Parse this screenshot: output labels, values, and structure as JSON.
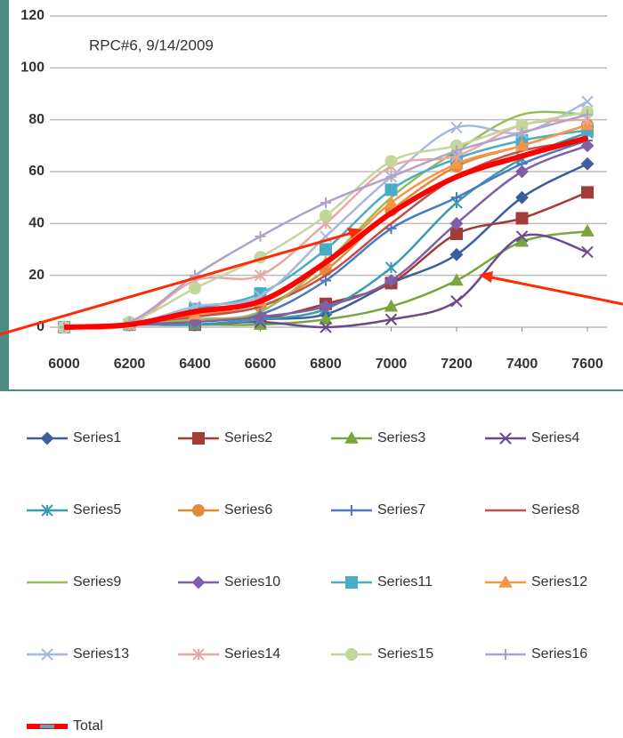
{
  "chart_data": {
    "type": "line",
    "annotation": "RPC#6, 9/14/2009",
    "x": [
      6000,
      6200,
      6400,
      6600,
      6800,
      7000,
      7200,
      7400,
      7600
    ],
    "xlim": [
      6000,
      7600
    ],
    "xticks": [
      6000,
      6200,
      6400,
      6600,
      6800,
      7000,
      7200,
      7400,
      7600
    ],
    "ylim": [
      0,
      120
    ],
    "yticks": [
      0,
      20,
      40,
      60,
      80,
      100,
      120
    ],
    "grid": true,
    "legend": "bottom",
    "series": [
      {
        "name": "Series1",
        "color": "#3a5f9a",
        "marker": "diamond",
        "values": [
          0,
          1,
          1,
          3,
          5,
          17,
          28,
          50,
          63
        ]
      },
      {
        "name": "Series2",
        "color": "#a33b38",
        "marker": "square",
        "values": [
          0,
          1,
          1,
          3,
          9,
          17,
          36,
          42,
          52
        ]
      },
      {
        "name": "Series3",
        "color": "#7aa53c",
        "marker": "triangle",
        "values": [
          0,
          1,
          1,
          1,
          3,
          8,
          18,
          33,
          37
        ]
      },
      {
        "name": "Series4",
        "color": "#6a4a8c",
        "marker": "x",
        "values": [
          0,
          1,
          1,
          2,
          0,
          3,
          10,
          35,
          29
        ]
      },
      {
        "name": "Series5",
        "color": "#3a9bb0",
        "marker": "asterisk",
        "values": [
          0,
          1,
          1,
          3,
          7,
          23,
          48,
          65,
          75
        ]
      },
      {
        "name": "Series6",
        "color": "#e08a3c",
        "marker": "circle",
        "values": [
          0,
          1,
          5,
          8,
          22,
          45,
          62,
          70,
          78
        ]
      },
      {
        "name": "Series7",
        "color": "#4a7ac0",
        "marker": "plus",
        "values": [
          0,
          1,
          3,
          5,
          18,
          38,
          50,
          63,
          72
        ]
      },
      {
        "name": "Series8",
        "color": "#c0504d",
        "marker": "none",
        "values": [
          0,
          1,
          4,
          8,
          20,
          40,
          58,
          68,
          72
        ]
      },
      {
        "name": "Series9",
        "color": "#9bbb59",
        "marker": "none",
        "values": [
          0,
          1,
          3,
          6,
          25,
          50,
          68,
          82,
          82
        ]
      },
      {
        "name": "Series10",
        "color": "#7f5fa8",
        "marker": "diamond",
        "values": [
          0,
          1,
          2,
          4,
          8,
          18,
          40,
          60,
          70
        ]
      },
      {
        "name": "Series11",
        "color": "#4bacc6",
        "marker": "square",
        "values": [
          0,
          1,
          7,
          13,
          30,
          53,
          65,
          72,
          76
        ]
      },
      {
        "name": "Series12",
        "color": "#f79646",
        "marker": "triangle",
        "values": [
          0,
          1,
          5,
          10,
          25,
          48,
          63,
          70,
          78
        ]
      },
      {
        "name": "Series13",
        "color": "#a6b9dd",
        "marker": "x",
        "values": [
          0,
          1,
          8,
          12,
          35,
          58,
          77,
          75,
          87
        ]
      },
      {
        "name": "Series14",
        "color": "#e6a9a7",
        "marker": "asterisk",
        "values": [
          0,
          1,
          18,
          20,
          40,
          62,
          66,
          78,
          80
        ]
      },
      {
        "name": "Series15",
        "color": "#c3d69b",
        "marker": "circle",
        "values": [
          0,
          2,
          15,
          27,
          43,
          64,
          70,
          78,
          83
        ]
      },
      {
        "name": "Series16",
        "color": "#b3a2c7",
        "marker": "plus",
        "values": [
          0,
          2,
          20,
          35,
          48,
          58,
          68,
          75,
          82
        ]
      },
      {
        "name": "Total",
        "color": "#ff0000",
        "marker": "dash",
        "values": [
          0,
          1,
          6,
          10,
          25,
          44,
          58,
          66,
          73
        ]
      }
    ]
  }
}
